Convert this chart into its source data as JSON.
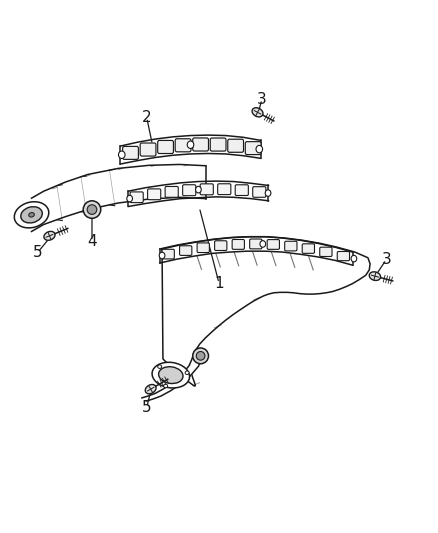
{
  "bg_color": "#ffffff",
  "line_color": "#1a1a1a",
  "lw": 1.1,
  "fig_width": 4.38,
  "fig_height": 5.33,
  "dpi": 100,
  "font_size": 11
}
